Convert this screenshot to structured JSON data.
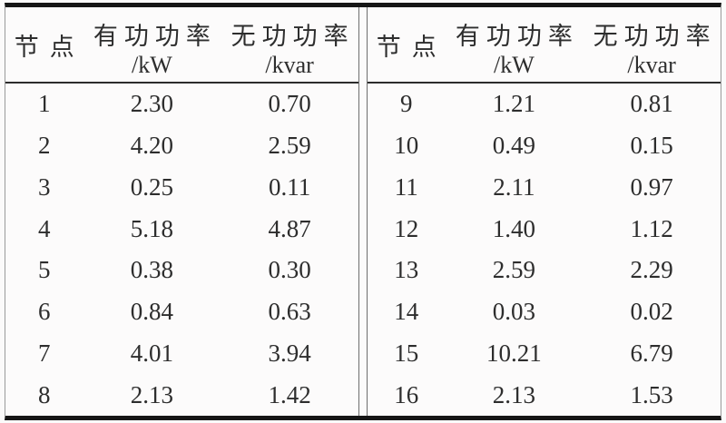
{
  "headers": {
    "node": "节点",
    "active_power": "有功功率",
    "active_unit": "/kW",
    "reactive_power": "无功功率",
    "reactive_unit": "/kvar"
  },
  "tables": [
    {
      "rows": [
        [
          "1",
          "2.30",
          "0.70"
        ],
        [
          "2",
          "4.20",
          "2.59"
        ],
        [
          "3",
          "0.25",
          "0.11"
        ],
        [
          "4",
          "5.18",
          "4.87"
        ],
        [
          "5",
          "0.38",
          "0.30"
        ],
        [
          "6",
          "0.84",
          "0.63"
        ],
        [
          "7",
          "4.01",
          "3.94"
        ],
        [
          "8",
          "2.13",
          "1.42"
        ]
      ]
    },
    {
      "rows": [
        [
          "9",
          "1.21",
          "0.81"
        ],
        [
          "10",
          "0.49",
          "0.15"
        ],
        [
          "11",
          "2.11",
          "0.97"
        ],
        [
          "12",
          "1.40",
          "1.12"
        ],
        [
          "13",
          "2.59",
          "2.29"
        ],
        [
          "14",
          "0.03",
          "0.02"
        ],
        [
          "15",
          "10.21",
          "6.79"
        ],
        [
          "16",
          "2.13",
          "1.53"
        ]
      ]
    }
  ],
  "chart_data": {
    "type": "table",
    "columns": [
      "节点",
      "有功功率/kW",
      "无功功率/kvar"
    ],
    "rows": [
      [
        1,
        2.3,
        0.7
      ],
      [
        2,
        4.2,
        2.59
      ],
      [
        3,
        0.25,
        0.11
      ],
      [
        4,
        5.18,
        4.87
      ],
      [
        5,
        0.38,
        0.3
      ],
      [
        6,
        0.84,
        0.63
      ],
      [
        7,
        4.01,
        3.94
      ],
      [
        8,
        2.13,
        1.42
      ],
      [
        9,
        1.21,
        0.81
      ],
      [
        10,
        0.49,
        0.15
      ],
      [
        11,
        2.11,
        0.97
      ],
      [
        12,
        1.4,
        1.12
      ],
      [
        13,
        2.59,
        2.29
      ],
      [
        14,
        0.03,
        0.02
      ],
      [
        15,
        10.21,
        6.79
      ],
      [
        16,
        2.13,
        1.53
      ]
    ],
    "layout": "split two-panel table: nodes 1-8 in left panel, nodes 9-16 in right panel"
  },
  "colors": {
    "text": "#2d2d2d",
    "thick_rule": "#161616",
    "thin_rule": "#2c2c2c",
    "edge_rule": "#9a9a9a",
    "background": "#fbfafa"
  }
}
